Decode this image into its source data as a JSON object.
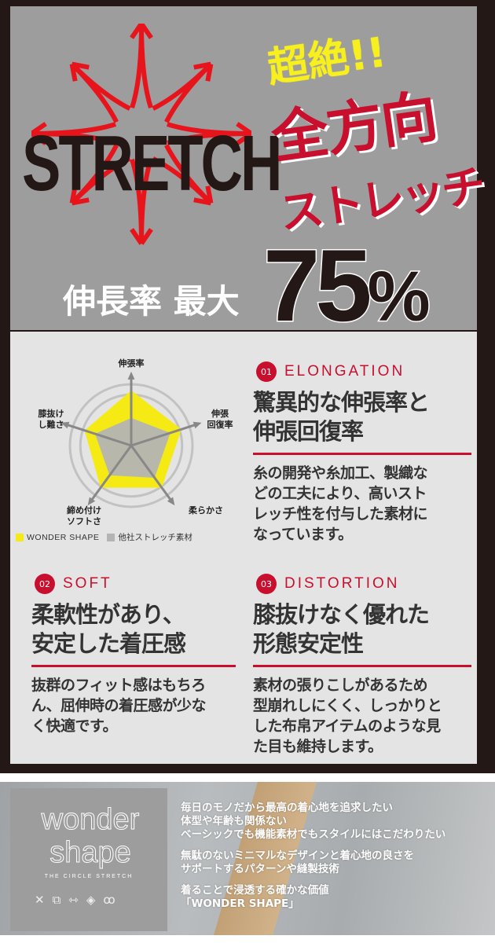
{
  "hero": {
    "logo_text": "STRETCH",
    "tagline_small": "超絶!!",
    "tagline_main": "全方向",
    "tagline_sub": "ストレッチ",
    "rate_label": "伸長率 最大",
    "rate_value": "75",
    "rate_unit": "%",
    "colors": {
      "arrows": "#e8141c",
      "red": "#c8102e",
      "yellow": "#f7ef1e",
      "bg": "#9d9d9d"
    }
  },
  "chart_data": {
    "type": "radar",
    "axes": [
      "伸張率",
      "伸張回復率",
      "柔らかさ",
      "締め付けソフトさ",
      "膝抜けし難さ"
    ],
    "axis_labels": [
      [
        "伸張率"
      ],
      [
        "伸張",
        "回復率"
      ],
      [
        "柔らかさ"
      ],
      [
        "締め付け",
        "ソフトさ"
      ],
      [
        "膝抜け",
        "し難さ"
      ]
    ],
    "series": [
      {
        "name": "WONDER SHAPE",
        "color": "#f5ea14",
        "values": [
          0.9,
          0.86,
          0.85,
          0.85,
          0.8
        ]
      },
      {
        "name": "他社ストレッチ素材",
        "color": "#b4b4b4",
        "values": [
          0.45,
          0.67,
          0.65,
          0.6,
          0.62
        ]
      }
    ],
    "range": [
      0,
      1
    ],
    "legend": "bottom"
  },
  "features": [
    {
      "num": "01",
      "title": "ELONGATION",
      "heading": [
        "驚異的な伸張率と",
        "伸張回復率"
      ],
      "body": [
        "糸の開発や糸加工、製織な",
        "どの工夫により、高いスト",
        "レッチ性を付与した素材に",
        "なっています。"
      ]
    },
    {
      "num": "02",
      "title": "SOFT",
      "heading": [
        "柔軟性があり、",
        "安定した着圧感"
      ],
      "body": [
        "抜群のフィット感はもちろ",
        "ん、屈伸時の着圧感が少な",
        "く快適です。"
      ]
    },
    {
      "num": "03",
      "title": "DISTORTION",
      "heading": [
        "膝抜けなく優れた",
        "形態安定性"
      ],
      "body": [
        "素材の張りこしがあるため",
        "型崩れしにくく、しっかりと",
        "した布帛アイテムのような見",
        "た目も維持します。"
      ]
    }
  ],
  "banner": {
    "brand_line1": "wonder",
    "brand_line2": "shape",
    "brand_sub": "THE CIRCLE STRETCH",
    "icons": [
      "stretch-arrows-icon",
      "layers-icon",
      "width-icon",
      "mesh-icon",
      "coil-icon"
    ],
    "lines": [
      "毎日のモノだから最高の着心地を追求したい",
      "体型や年齢も関係ない",
      "ベーシックでも機能素材でもスタイルにはこだわりたい",
      "",
      "無駄のないミニマルなデザインと着心地の良さを",
      "サポートするパターンや縫製技術",
      "",
      "着ることで浸透する確かな価値",
      "「WONDER SHAPE」"
    ]
  }
}
